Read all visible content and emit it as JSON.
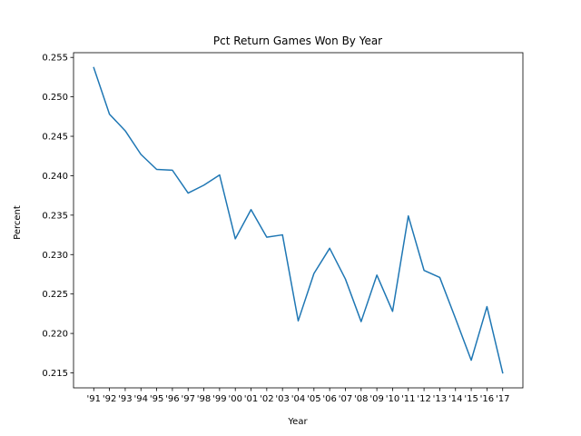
{
  "chart_data": {
    "type": "line",
    "title": "Pct Return Games Won By Year",
    "xlabel": "Year",
    "ylabel": "Percent",
    "categories": [
      "'91",
      "'92",
      "'93",
      "'94",
      "'95",
      "'96",
      "'97",
      "'98",
      "'99",
      "'00",
      "'01",
      "'02",
      "'03",
      "'04",
      "'05",
      "'06",
      "'07",
      "'08",
      "'09",
      "'10",
      "'11",
      "'12",
      "'13",
      "'14",
      "'15",
      "'16",
      "'17"
    ],
    "tick_labels": [
      "'91",
      "'92",
      "'93",
      "'94",
      "'95",
      "'96",
      "'97",
      "'98",
      "'99",
      "'00",
      "'01",
      "'02",
      "'03",
      "'04",
      "'05",
      "'06",
      "'07",
      "'08",
      "'09",
      "'10",
      "'11",
      "'12",
      "'13",
      "'14",
      "'15",
      "'16",
      "'17"
    ],
    "series": [
      {
        "values": [
          0.2537,
          0.2478,
          0.2457,
          0.2427,
          0.2408,
          0.2407,
          0.2378,
          0.2388,
          0.2401,
          0.232,
          0.2357,
          0.2322,
          0.2325,
          0.2216,
          0.2276,
          0.2308,
          0.2269,
          0.2215,
          0.2274,
          0.2228,
          0.2349,
          0.228,
          0.2271,
          0.2219,
          0.2166,
          0.2234,
          0.215
        ],
        "color": "#1f77b4"
      }
    ],
    "ylim": [
      0.2131,
      0.2556
    ],
    "yticks": [
      0.215,
      0.22,
      0.225,
      0.23,
      0.235,
      0.24,
      0.245,
      0.25,
      0.255
    ],
    "ytick_labels": [
      "0.215",
      "0.220",
      "0.225",
      "0.230",
      "0.235",
      "0.240",
      "0.245",
      "0.250",
      "0.255"
    ],
    "grid": false,
    "legend": "none"
  }
}
